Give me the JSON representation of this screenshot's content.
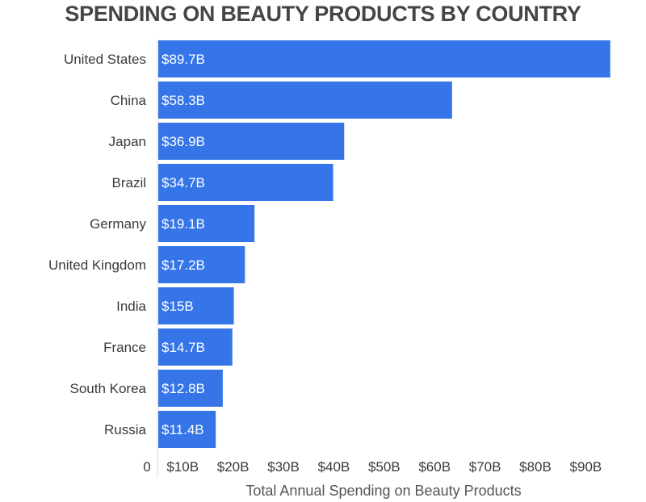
{
  "chart_data": {
    "type": "bar",
    "orientation": "horizontal",
    "title": "SPENDING ON BEAUTY PRODUCTS BY COUNTRY",
    "xlabel": "Total Annual Spending on Beauty Products",
    "ylabel": "",
    "categories": [
      "United States",
      "China",
      "Japan",
      "Brazil",
      "Germany",
      "United Kingdom",
      "India",
      "France",
      "South Korea",
      "Russia"
    ],
    "values": [
      89.7,
      58.3,
      36.9,
      34.7,
      19.1,
      17.2,
      15,
      14.7,
      12.8,
      11.4
    ],
    "data_labels": [
      "$89.7B",
      "$58.3B",
      "$36.9B",
      "$34.7B",
      "$19.1B",
      "$17.2B",
      "$15B",
      "$14.7B",
      "$12.8B",
      "$11.4B"
    ],
    "x_ticks": [
      0,
      10,
      20,
      30,
      40,
      50,
      60,
      70,
      80,
      90
    ],
    "x_tick_labels": [
      "0",
      "$10B",
      "$20B",
      "$30B",
      "$40B",
      "$50B",
      "$60B",
      "$70B",
      "$80B",
      "$90B"
    ],
    "xlim": [
      0,
      90
    ],
    "grid": false,
    "colors": {
      "bar": "#3575e8",
      "title": "#454545"
    }
  }
}
